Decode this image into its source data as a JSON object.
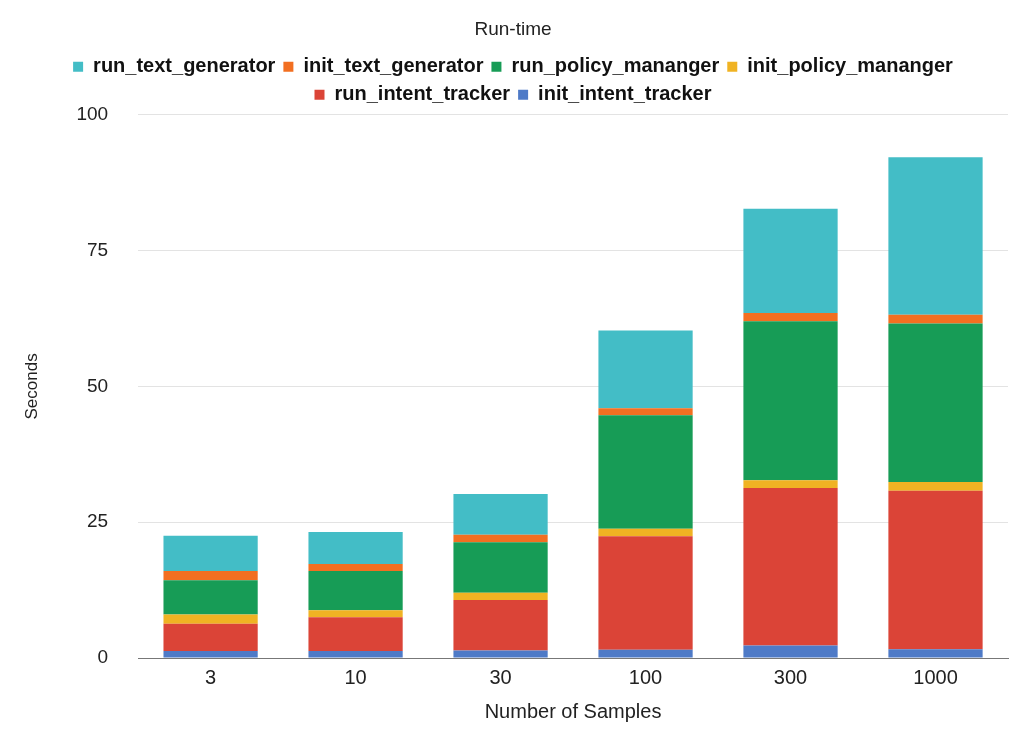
{
  "chart_data": {
    "type": "bar",
    "title": "Run-time",
    "xlabel": "Number of Samples",
    "ylabel": "Seconds",
    "categories": [
      "3",
      "10",
      "30",
      "100",
      "300",
      "1000"
    ],
    "stacked": true,
    "ylim": [
      0,
      100
    ],
    "yticks": [
      0,
      25,
      50,
      75,
      100
    ],
    "grid": "y",
    "legend": "top",
    "series": [
      {
        "name": "init_intent_tracker",
        "color": "#4e7ac7",
        "values": [
          1.3,
          1.3,
          1.4,
          1.5,
          2.3,
          1.6
        ]
      },
      {
        "name": "run_intent_tracker",
        "color": "#db4437",
        "values": [
          5.0,
          6.2,
          9.3,
          20.9,
          29.0,
          29.2
        ]
      },
      {
        "name": "init_policy_mananger",
        "color": "#f0b323",
        "values": [
          1.7,
          1.3,
          1.3,
          1.4,
          1.4,
          1.6
        ]
      },
      {
        "name": "run_policy_mananger",
        "color": "#179c56",
        "values": [
          6.3,
          7.2,
          9.3,
          20.9,
          29.3,
          29.2
        ]
      },
      {
        "name": "init_text_generator",
        "color": "#f26f21",
        "values": [
          1.7,
          1.3,
          1.4,
          1.3,
          1.5,
          1.6
        ]
      },
      {
        "name": "run_text_generator",
        "color": "#43bdc6",
        "values": [
          6.5,
          5.9,
          7.5,
          14.3,
          19.2,
          29.0
        ]
      }
    ]
  }
}
